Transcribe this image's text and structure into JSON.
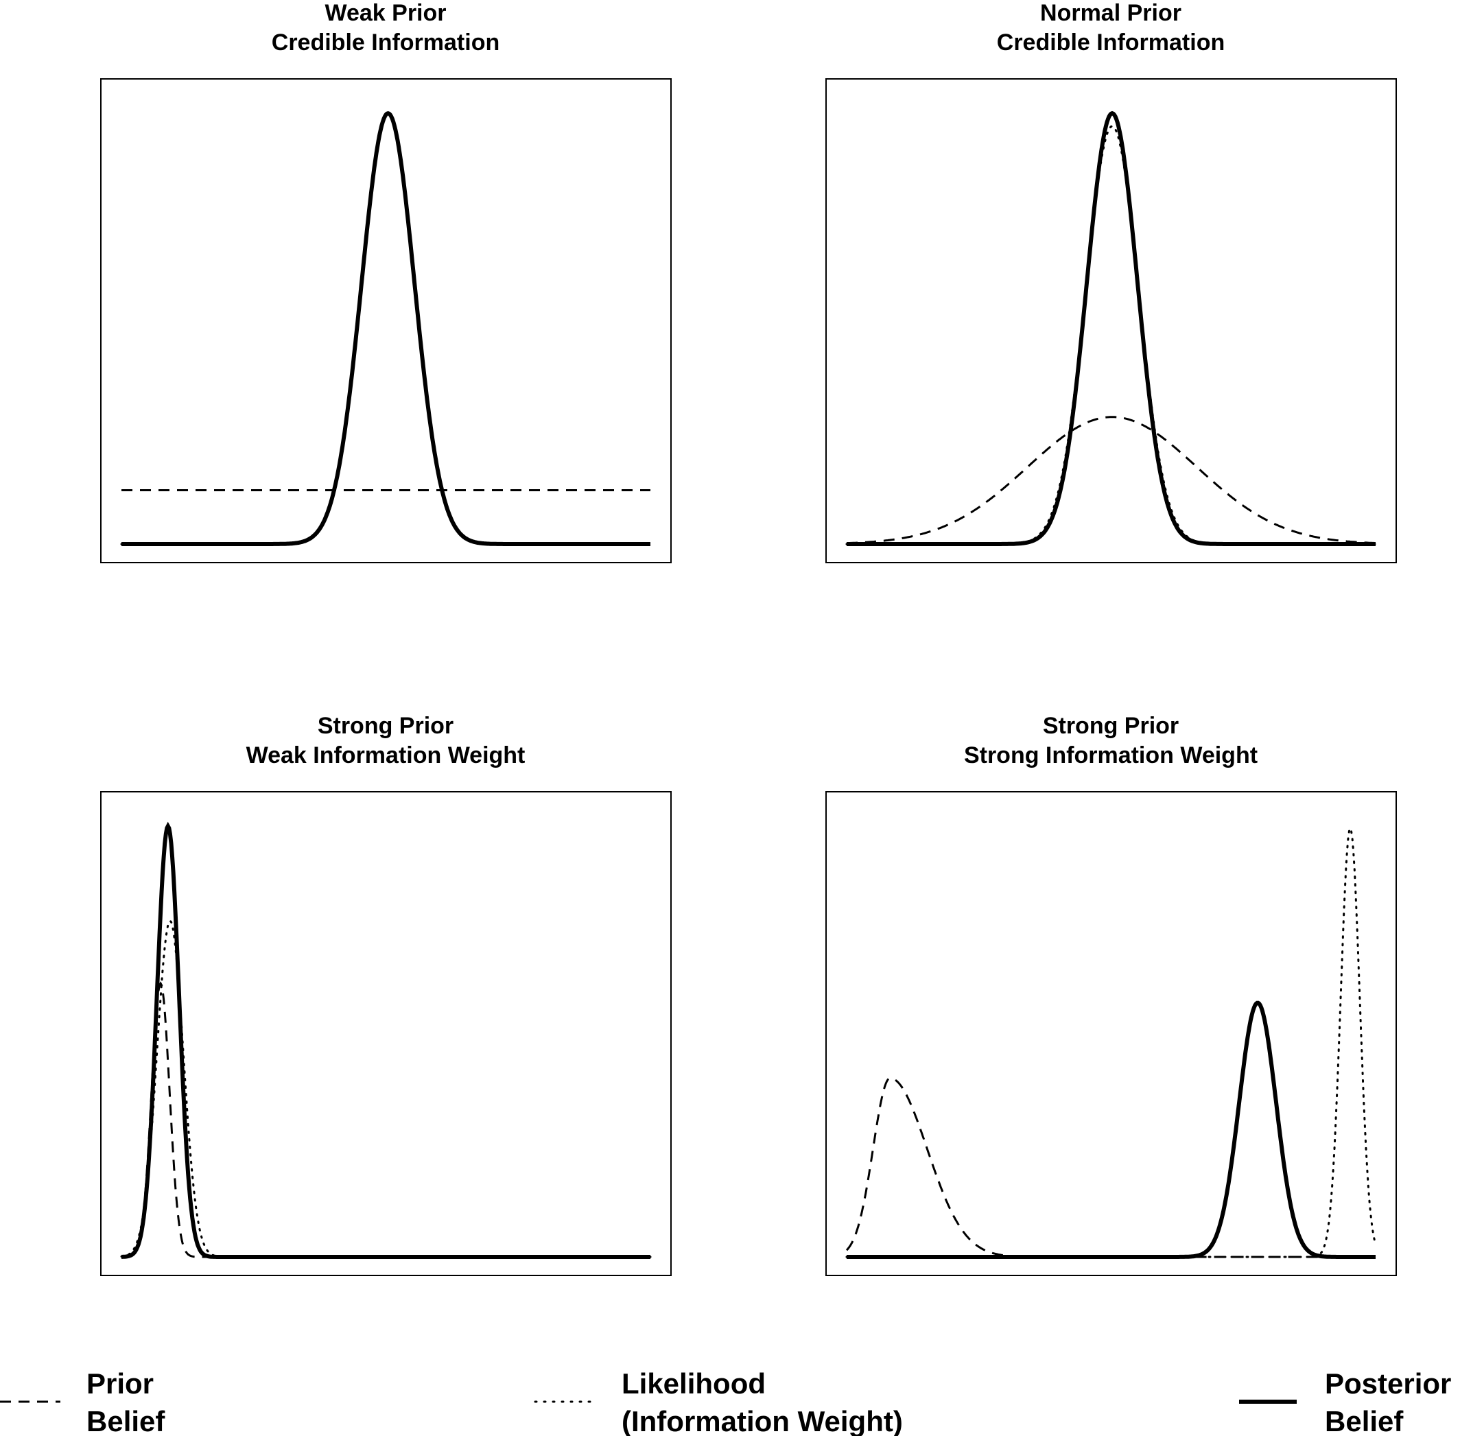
{
  "chart_data": [
    {
      "type": "line",
      "title": [
        "Weak Prior",
        "Credible Information"
      ],
      "xlabel": "",
      "ylabel": "",
      "axes_ticks": false,
      "grid": false,
      "xlim": [
        0,
        1
      ],
      "ylim": [
        0,
        1.04
      ],
      "series": [
        {
          "name": "Prior Belief",
          "style": "dashed",
          "curve": "flat",
          "level": 0.125
        },
        {
          "name": "Likelihood (Information Weight)",
          "style": "dotted",
          "curve": "gaussian",
          "mean": 0.504,
          "sd": 0.05,
          "peak": 1.0
        },
        {
          "name": "Posterior Belief",
          "style": "solid",
          "curve": "gaussian",
          "mean": 0.504,
          "sd": 0.05,
          "peak": 1.0
        }
      ]
    },
    {
      "type": "line",
      "title": [
        "Normal Prior",
        "Credible Information"
      ],
      "xlabel": "",
      "ylabel": "",
      "axes_ticks": false,
      "grid": false,
      "xlim": [
        0,
        1
      ],
      "ylim": [
        0,
        1.04
      ],
      "series": [
        {
          "name": "Prior Belief",
          "style": "dashed",
          "curve": "gaussian",
          "mean": 0.502,
          "sd": 0.16,
          "peak": 0.295
        },
        {
          "name": "Likelihood (Information Weight)",
          "style": "dotted",
          "curve": "gaussian",
          "mean": 0.502,
          "sd": 0.05,
          "peak": 0.97
        },
        {
          "name": "Posterior Belief",
          "style": "solid",
          "curve": "gaussian",
          "mean": 0.502,
          "sd": 0.048,
          "peak": 1.0
        }
      ]
    },
    {
      "type": "line",
      "title": [
        "Strong Prior",
        "Weak Information Weight"
      ],
      "xlabel": "",
      "ylabel": "",
      "axes_ticks": false,
      "grid": false,
      "xlim": [
        0,
        1
      ],
      "ylim": [
        0,
        1.04
      ],
      "series": [
        {
          "name": "Prior Belief",
          "style": "dashed",
          "curve": "gaussian",
          "mean": 0.074,
          "sd": 0.017,
          "peak": 0.635
        },
        {
          "name": "Likelihood (Information Weight)",
          "style": "dotted",
          "curve": "gaussian",
          "mean": 0.092,
          "sd": 0.025,
          "peak": 0.78
        },
        {
          "name": "Posterior Belief",
          "style": "solid",
          "curve": "gaussian",
          "mean": 0.088,
          "sd": 0.021,
          "peak": 1.0
        }
      ]
    },
    {
      "type": "line",
      "title": [
        "Strong Prior",
        "Strong Information Weight"
      ],
      "xlabel": "",
      "ylabel": "",
      "axes_ticks": false,
      "grid": false,
      "xlim": [
        0,
        1
      ],
      "ylim": [
        0,
        1.04
      ],
      "series": [
        {
          "name": "Prior Belief",
          "style": "dashed",
          "curve": "skewed",
          "mode": 0.082,
          "sd_left": 0.032,
          "sd_right": 0.07,
          "peak": 0.415
        },
        {
          "name": "Likelihood (Information Weight)",
          "style": "dotted",
          "curve": "gaussian",
          "mean": 0.952,
          "sd": 0.018,
          "peak": 0.995
        },
        {
          "name": "Posterior Belief",
          "style": "solid",
          "curve": "gaussian",
          "mean": 0.777,
          "sd": 0.035,
          "peak": 0.59
        }
      ]
    }
  ],
  "legend": {
    "placement": "bottom",
    "entries": [
      {
        "line1": "Prior",
        "line2": "Belief",
        "style": "dashed"
      },
      {
        "line1": "Likelihood",
        "line2": "(Information Weight)",
        "style": "dotted"
      },
      {
        "line1": "Posterior",
        "line2": "Belief",
        "style": "solid"
      }
    ]
  },
  "colors": {
    "ink": "#000000",
    "background": "#ffffff"
  }
}
